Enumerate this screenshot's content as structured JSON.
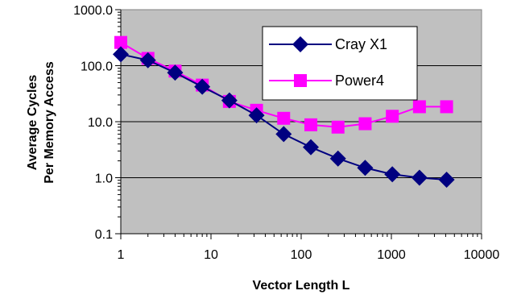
{
  "chart_data": {
    "type": "line",
    "title": "",
    "xlabel": "Vector Length L",
    "ylabel_lines": [
      "Average Cycles",
      "Per Memory Access"
    ],
    "x_scale": "log",
    "y_scale": "log",
    "xlim": [
      1,
      10000
    ],
    "ylim": [
      0.1,
      1000
    ],
    "x_tick_labels": [
      "1",
      "10",
      "100",
      "1000",
      "10000"
    ],
    "y_tick_labels": [
      "0.1",
      "1.0",
      "10.0",
      "100.0",
      "1000.0"
    ],
    "grid": "horizontal major",
    "legend_position": "top-right",
    "plot_background": "#c0c0c0",
    "series": [
      {
        "name": "Cray X1",
        "color": "#000080",
        "marker": "diamond",
        "x": [
          1,
          2,
          4,
          8,
          16,
          32,
          64,
          128,
          256,
          512,
          1024,
          2048,
          4096
        ],
        "y": [
          160,
          125,
          75,
          42,
          24,
          13,
          6,
          3.5,
          2.2,
          1.5,
          1.15,
          1.0,
          0.92
        ]
      },
      {
        "name": "Power4",
        "color": "#ff00ff",
        "marker": "square",
        "x": [
          1,
          2,
          4,
          8,
          16,
          32,
          64,
          128,
          256,
          512,
          1024,
          2048,
          4096
        ],
        "y": [
          260,
          135,
          80,
          45,
          23,
          16,
          11.5,
          8.8,
          8.0,
          9.2,
          12.5,
          18.5,
          18.5
        ]
      }
    ]
  }
}
